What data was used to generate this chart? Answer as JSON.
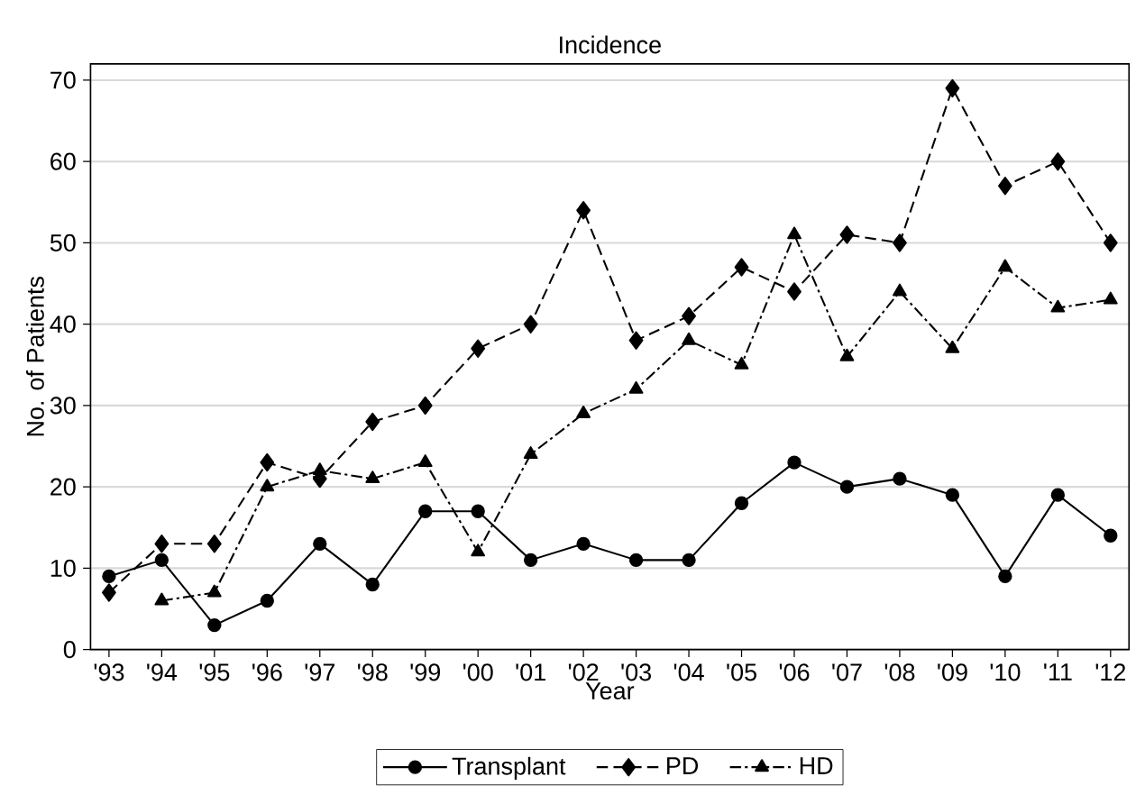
{
  "chart_data": {
    "type": "line",
    "title": "Incidence",
    "xlabel": "Year",
    "ylabel": "No. of Patients",
    "categories": [
      "'93",
      "'94",
      "'95",
      "'96",
      "'97",
      "'98",
      "'99",
      "'00",
      "'01",
      "'02",
      "'03",
      "'04",
      "'05",
      "'06",
      "'07",
      "'08",
      "'09",
      "'10",
      "'11",
      "'12"
    ],
    "series": [
      {
        "name": "Transplant",
        "color": "#000000",
        "marker": "circle",
        "line_style": "solid",
        "values": [
          9,
          11,
          3,
          6,
          13,
          8,
          17,
          17,
          11,
          13,
          11,
          11,
          18,
          23,
          20,
          21,
          19,
          9,
          19,
          14
        ]
      },
      {
        "name": "PD",
        "color": "#000000",
        "marker": "diamond",
        "line_style": "dashed",
        "values": [
          7,
          13,
          13,
          23,
          21,
          28,
          30,
          37,
          40,
          54,
          38,
          41,
          47,
          44,
          51,
          50,
          69,
          57,
          60,
          50
        ]
      },
      {
        "name": "HD",
        "color": "#000000",
        "marker": "triangle",
        "line_style": "dashdotted",
        "values": [
          null,
          6,
          7,
          20,
          22,
          21,
          23,
          12,
          24,
          29,
          32,
          38,
          35,
          51,
          36,
          44,
          37,
          47,
          42,
          43
        ]
      }
    ],
    "ylim": [
      0,
      72
    ],
    "yticks": [
      0,
      10,
      20,
      30,
      40,
      50,
      60,
      70
    ],
    "grid": "y",
    "legend": "bottom"
  }
}
